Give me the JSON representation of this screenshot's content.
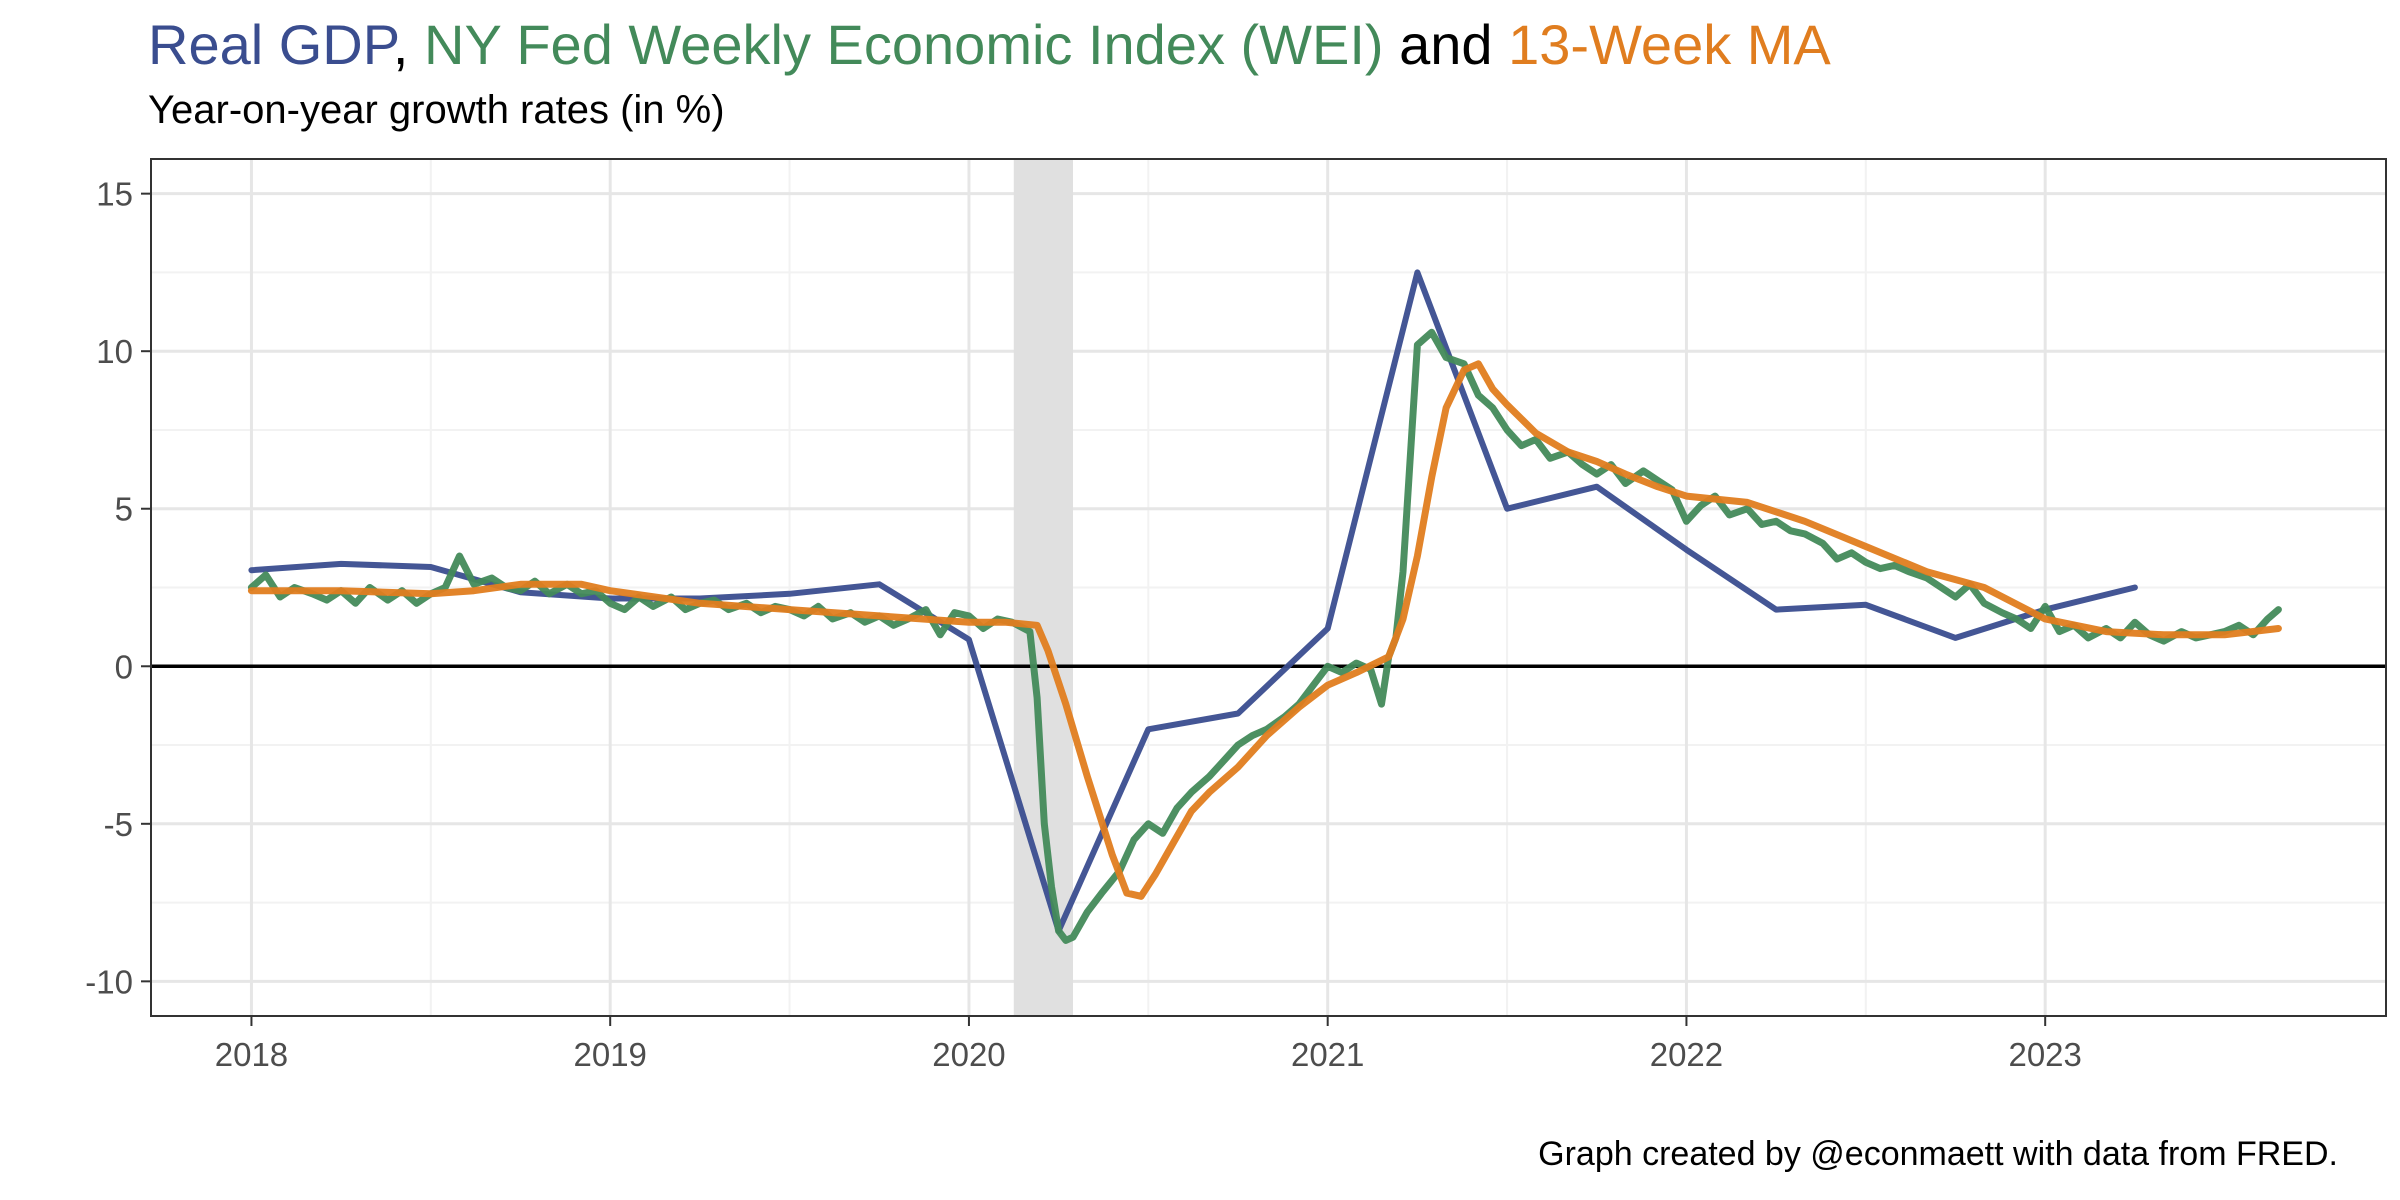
{
  "title": {
    "gdp_text": "Real GDP",
    "sep1": ",",
    "wei_text": "NY Fed Weekly Economic Index (WEI)",
    "and_text": "and",
    "ma_text": "13-Week MA"
  },
  "subtitle": "Year-on-year growth rates (in %)",
  "caption": "Graph created by @econmaett with data from FRED.",
  "colors": {
    "gdp": "#3a4d8f",
    "wei": "#438a5a",
    "ma": "#e07d1f",
    "recession": "#e0e0e0",
    "grid_major": "#e6e6e6",
    "grid_minor": "#f2f2f2",
    "zero_line": "#000000"
  },
  "chart_data": {
    "type": "line",
    "title": "Real GDP, NY Fed Weekly Economic Index (WEI) and 13-Week MA",
    "subtitle": "Year-on-year growth rates (in %)",
    "xlim": [
      2017.72,
      2023.95
    ],
    "ylim": [
      -11.1,
      16.1
    ],
    "x_ticks": [
      2018,
      2019,
      2020,
      2021,
      2022,
      2023
    ],
    "x_tick_labels": [
      "2018",
      "2019",
      "2020",
      "2021",
      "2022",
      "2023"
    ],
    "y_ticks": [
      15,
      10,
      5,
      0,
      -5,
      -10
    ],
    "y_tick_labels": [
      "15",
      "10",
      "5",
      "0",
      "-5",
      "-10"
    ],
    "grid": true,
    "recession_shading": [
      2020.125,
      2020.29
    ],
    "zero_line": true,
    "series": [
      {
        "name": "Real GDP",
        "key": "gdp",
        "x": [
          2018.0,
          2018.25,
          2018.5,
          2018.75,
          2019.0,
          2019.25,
          2019.5,
          2019.75,
          2020.0,
          2020.25,
          2020.5,
          2020.75,
          2021.0,
          2021.25,
          2021.5,
          2021.75,
          2022.0,
          2022.25,
          2022.5,
          2022.75,
          2023.0,
          2023.25
        ],
        "y": [
          3.05,
          3.25,
          3.15,
          2.35,
          2.15,
          2.15,
          2.3,
          2.6,
          0.85,
          -8.4,
          -2.0,
          -1.5,
          1.2,
          12.5,
          5.0,
          5.7,
          3.7,
          1.8,
          1.95,
          0.9,
          1.8,
          2.5
        ]
      },
      {
        "name": "NY Fed Weekly Economic Index (WEI)",
        "key": "wei",
        "x": [
          2018.0,
          2018.04,
          2018.08,
          2018.12,
          2018.17,
          2018.21,
          2018.25,
          2018.29,
          2018.33,
          2018.38,
          2018.42,
          2018.46,
          2018.5,
          2018.54,
          2018.58,
          2018.62,
          2018.67,
          2018.71,
          2018.75,
          2018.79,
          2018.83,
          2018.88,
          2018.92,
          2018.96,
          2019.0,
          2019.04,
          2019.08,
          2019.12,
          2019.17,
          2019.21,
          2019.25,
          2019.29,
          2019.33,
          2019.38,
          2019.42,
          2019.46,
          2019.5,
          2019.54,
          2019.58,
          2019.62,
          2019.67,
          2019.71,
          2019.75,
          2019.79,
          2019.83,
          2019.88,
          2019.92,
          2019.96,
          2020.0,
          2020.04,
          2020.08,
          2020.12,
          2020.17,
          2020.19,
          2020.21,
          2020.23,
          2020.25,
          2020.27,
          2020.29,
          2020.33,
          2020.37,
          2020.42,
          2020.46,
          2020.5,
          2020.54,
          2020.58,
          2020.62,
          2020.67,
          2020.71,
          2020.75,
          2020.79,
          2020.83,
          2020.88,
          2020.92,
          2020.96,
          2021.0,
          2021.04,
          2021.08,
          2021.12,
          2021.15,
          2021.17,
          2021.19,
          2021.21,
          2021.25,
          2021.29,
          2021.33,
          2021.38,
          2021.42,
          2021.46,
          2021.5,
          2021.54,
          2021.58,
          2021.62,
          2021.67,
          2021.71,
          2021.75,
          2021.79,
          2021.83,
          2021.88,
          2021.92,
          2021.96,
          2022.0,
          2022.04,
          2022.08,
          2022.12,
          2022.17,
          2022.21,
          2022.25,
          2022.29,
          2022.33,
          2022.38,
          2022.42,
          2022.46,
          2022.5,
          2022.54,
          2022.58,
          2022.62,
          2022.67,
          2022.71,
          2022.75,
          2022.79,
          2022.83,
          2022.88,
          2022.92,
          2022.96,
          2023.0,
          2023.04,
          2023.08,
          2023.12,
          2023.17,
          2023.21,
          2023.25,
          2023.29,
          2023.33,
          2023.38,
          2023.42,
          2023.46,
          2023.5,
          2023.54,
          2023.58,
          2023.62,
          2023.65
        ],
        "y": [
          2.5,
          2.9,
          2.2,
          2.5,
          2.3,
          2.1,
          2.4,
          2.0,
          2.5,
          2.1,
          2.4,
          2.0,
          2.3,
          2.5,
          3.5,
          2.6,
          2.8,
          2.5,
          2.4,
          2.7,
          2.3,
          2.6,
          2.3,
          2.4,
          2.0,
          1.8,
          2.2,
          1.9,
          2.2,
          1.8,
          2.0,
          2.1,
          1.8,
          2.0,
          1.7,
          1.9,
          1.8,
          1.6,
          1.9,
          1.5,
          1.7,
          1.4,
          1.6,
          1.3,
          1.5,
          1.8,
          1.0,
          1.7,
          1.6,
          1.2,
          1.5,
          1.4,
          1.1,
          -1.0,
          -5.0,
          -7.0,
          -8.4,
          -8.7,
          -8.6,
          -7.8,
          -7.2,
          -6.5,
          -5.5,
          -5.0,
          -5.3,
          -4.5,
          -4.0,
          -3.5,
          -3.0,
          -2.5,
          -2.2,
          -2.0,
          -1.6,
          -1.2,
          -0.6,
          0.0,
          -0.2,
          0.1,
          -0.1,
          -1.2,
          0.3,
          0.9,
          3.0,
          10.2,
          10.6,
          9.8,
          9.6,
          8.6,
          8.2,
          7.5,
          7.0,
          7.2,
          6.6,
          6.8,
          6.4,
          6.1,
          6.4,
          5.8,
          6.2,
          5.9,
          5.6,
          4.6,
          5.1,
          5.4,
          4.8,
          5.0,
          4.5,
          4.6,
          4.3,
          4.2,
          3.9,
          3.4,
          3.6,
          3.3,
          3.1,
          3.2,
          3.0,
          2.8,
          2.5,
          2.2,
          2.6,
          2.0,
          1.7,
          1.5,
          1.2,
          1.9,
          1.1,
          1.3,
          0.9,
          1.2,
          0.9,
          1.4,
          1.0,
          0.8,
          1.1,
          0.9,
          1.0,
          1.1,
          1.3,
          1.0,
          1.5,
          1.8
        ]
      },
      {
        "name": "13-Week MA",
        "key": "ma",
        "x": [
          2018.0,
          2018.25,
          2018.5,
          2018.62,
          2018.75,
          2018.92,
          2019.0,
          2019.25,
          2019.5,
          2019.75,
          2020.0,
          2020.1,
          2020.19,
          2020.22,
          2020.27,
          2020.33,
          2020.4,
          2020.44,
          2020.48,
          2020.52,
          2020.56,
          2020.62,
          2020.67,
          2020.75,
          2020.83,
          2020.92,
          2021.0,
          2021.08,
          2021.17,
          2021.21,
          2021.25,
          2021.29,
          2021.33,
          2021.38,
          2021.42,
          2021.46,
          2021.5,
          2021.58,
          2021.67,
          2021.75,
          2021.83,
          2021.92,
          2022.0,
          2022.17,
          2022.33,
          2022.5,
          2022.67,
          2022.83,
          2023.0,
          2023.17,
          2023.33,
          2023.5,
          2023.65
        ],
        "y": [
          2.4,
          2.4,
          2.3,
          2.4,
          2.6,
          2.6,
          2.4,
          2.0,
          1.8,
          1.6,
          1.4,
          1.4,
          1.3,
          0.5,
          -1.2,
          -3.5,
          -6.0,
          -7.2,
          -7.3,
          -6.6,
          -5.8,
          -4.6,
          -4.0,
          -3.2,
          -2.2,
          -1.3,
          -0.6,
          -0.2,
          0.3,
          1.5,
          3.5,
          6.0,
          8.2,
          9.4,
          9.6,
          8.8,
          8.3,
          7.4,
          6.8,
          6.5,
          6.1,
          5.7,
          5.4,
          5.2,
          4.6,
          3.8,
          3.0,
          2.5,
          1.5,
          1.1,
          1.0,
          1.0,
          1.2
        ]
      }
    ]
  }
}
